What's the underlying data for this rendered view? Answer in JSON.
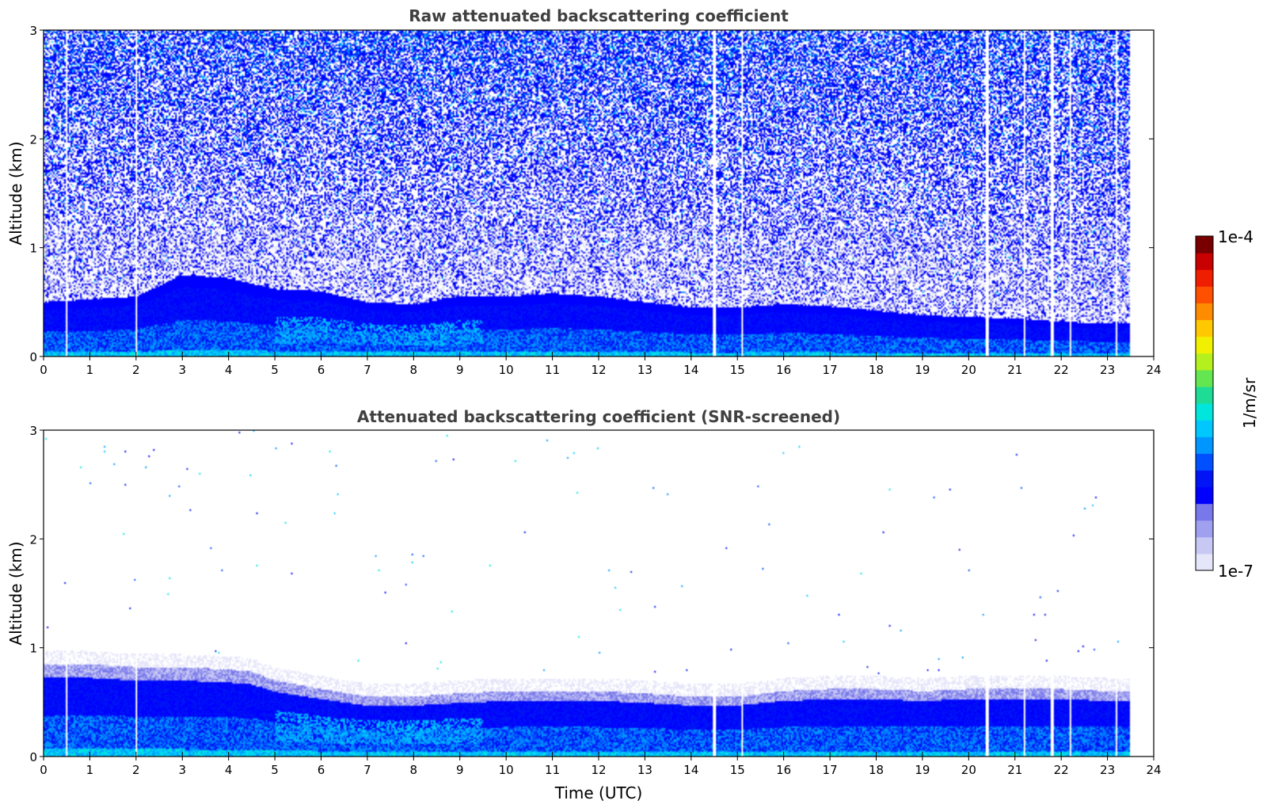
{
  "chart_data": [
    {
      "type": "heatmap",
      "title": "Raw attenuated backscattering coefficient",
      "xlabel": "",
      "ylabel": "Altitude (km)",
      "xlim": [
        0,
        24
      ],
      "ylim": [
        0,
        3
      ],
      "x_ticks": [
        "0",
        "1",
        "2",
        "3",
        "4",
        "5",
        "6",
        "7",
        "8",
        "9",
        "10",
        "11",
        "12",
        "13",
        "14",
        "15",
        "16",
        "17",
        "18",
        "19",
        "20",
        "21",
        "22",
        "23",
        "24"
      ],
      "y_ticks": [
        "0",
        "1",
        "2",
        "3"
      ],
      "data_end_hour": 23.5,
      "data_gaps_hours": [
        0.5,
        2.0,
        14.5,
        15.1,
        20.4,
        21.2,
        21.8,
        22.2,
        23.2
      ],
      "layer_top_km": {
        "hours": [
          0,
          2,
          3,
          4,
          5,
          6,
          7,
          8,
          9,
          10,
          11,
          12,
          13,
          14,
          15,
          16,
          17,
          18,
          19,
          20,
          21,
          22,
          23,
          23.5
        ],
        "values": [
          0.5,
          0.55,
          0.75,
          0.72,
          0.62,
          0.6,
          0.5,
          0.48,
          0.55,
          0.55,
          0.58,
          0.55,
          0.5,
          0.45,
          0.45,
          0.48,
          0.46,
          0.42,
          0.38,
          0.36,
          0.35,
          0.32,
          0.3,
          0.3
        ]
      },
      "noise": "strong above layer, increasing with altitude"
    },
    {
      "type": "heatmap",
      "title": "Attenuated backscattering coefficient (SNR-screened)",
      "xlabel": "Time (UTC)",
      "ylabel": "Altitude (km)",
      "xlim": [
        0,
        24
      ],
      "ylim": [
        0,
        3
      ],
      "x_ticks": [
        "0",
        "1",
        "2",
        "3",
        "4",
        "5",
        "6",
        "7",
        "8",
        "9",
        "10",
        "11",
        "12",
        "13",
        "14",
        "15",
        "16",
        "17",
        "18",
        "19",
        "20",
        "21",
        "22",
        "23",
        "24"
      ],
      "y_ticks": [
        "0",
        "1",
        "2",
        "3"
      ],
      "data_end_hour": 23.5,
      "data_gaps_hours": [
        0.5,
        2.0,
        14.5,
        15.1,
        20.4,
        21.2,
        21.8,
        22.2,
        23.2
      ],
      "layer_top_km": {
        "hours": [
          0,
          1,
          2,
          3,
          4,
          4.5,
          5,
          6,
          7,
          8,
          9,
          10,
          11,
          12,
          13,
          14,
          15,
          16,
          17,
          18,
          19,
          20,
          21,
          22,
          23,
          23.5
        ],
        "values": [
          0.85,
          0.85,
          0.82,
          0.82,
          0.8,
          0.78,
          0.7,
          0.62,
          0.55,
          0.55,
          0.58,
          0.6,
          0.6,
          0.6,
          0.58,
          0.55,
          0.55,
          0.6,
          0.62,
          0.62,
          0.6,
          0.62,
          0.62,
          0.62,
          0.6,
          0.6
        ]
      },
      "noise": "sparse isolated points above layer"
    }
  ],
  "colorbar": {
    "label": "1/m/sr",
    "max_label": "1e-4",
    "min_label": "1e-7",
    "scale": "log",
    "range": [
      1e-07,
      0.0001
    ],
    "colormap": [
      "#e6e6fa",
      "#c8c8f5",
      "#a0a0f0",
      "#7878eb",
      "#0000ff",
      "#0014f5",
      "#0050ff",
      "#0096ff",
      "#00c8ff",
      "#00e6dc",
      "#1edc96",
      "#64e650",
      "#b4f01e",
      "#f0f000",
      "#ffc800",
      "#ff8c00",
      "#ff5000",
      "#f01e00",
      "#c80000",
      "#780000"
    ]
  }
}
